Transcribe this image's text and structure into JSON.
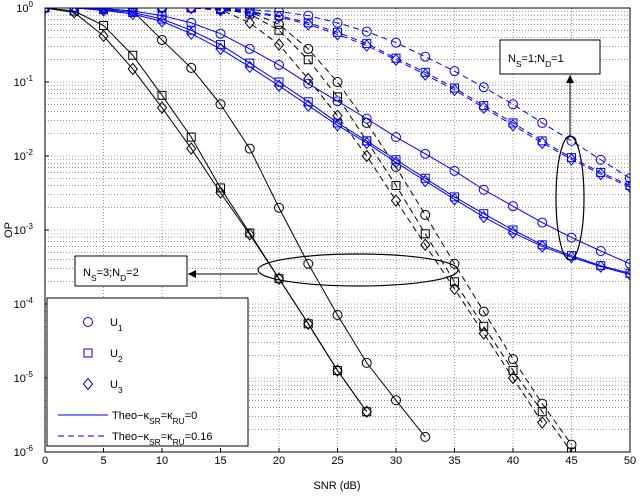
{
  "chart_data": {
    "type": "line",
    "xlabel": "SNR (dB)",
    "ylabel": "OP",
    "log_y": true,
    "grid": true,
    "xlim": [
      0,
      50
    ],
    "ylim": [
      1e-06,
      1
    ],
    "xticks": [
      0,
      5,
      10,
      15,
      20,
      25,
      30,
      35,
      40,
      45,
      50
    ],
    "yticks": [
      {
        "value": 1e-06,
        "label": "10",
        "exp": "-6"
      },
      {
        "value": 1e-05,
        "label": "10",
        "exp": "-5"
      },
      {
        "value": 0.0001,
        "label": "10",
        "exp": "-4"
      },
      {
        "value": 0.001,
        "label": "10",
        "exp": "-3"
      },
      {
        "value": 0.01,
        "label": "10",
        "exp": "-2"
      },
      {
        "value": 0.1,
        "label": "10",
        "exp": "-1"
      },
      {
        "value": 1,
        "label": "10",
        "exp": "0"
      }
    ],
    "x": [
      0,
      2.5,
      5,
      7.5,
      10,
      12.5,
      15,
      17.5,
      20,
      22.5,
      25,
      27.5,
      30,
      32.5,
      35,
      37.5,
      40,
      42.5,
      45,
      47.5,
      50
    ],
    "series": [
      {
        "color": "#000000",
        "dashed": false,
        "marker": "circle",
        "values": [
          1,
          1,
          0.98,
          0.91,
          0.37,
          0.155,
          0.05,
          0.0126,
          0.002,
          0.00035,
          7.1e-05,
          1.6e-05,
          5e-06,
          1.6e-06,
          null,
          null,
          null,
          null,
          null,
          null,
          null
        ]
      },
      {
        "color": "#000000",
        "dashed": false,
        "marker": "square",
        "values": [
          1,
          0.91,
          0.58,
          0.23,
          0.066,
          0.018,
          0.0037,
          0.00091,
          0.00022,
          5.4e-05,
          1.26e-05,
          3.5e-06,
          null,
          null,
          null,
          null,
          null,
          null,
          null,
          null,
          null
        ]
      },
      {
        "color": "#000000",
        "dashed": false,
        "marker": "diamond",
        "values": [
          1,
          0.87,
          0.42,
          0.15,
          0.045,
          0.0126,
          0.0032,
          0.00087,
          0.00022,
          5.4e-05,
          1.26e-05,
          3.5e-06,
          null,
          null,
          null,
          null,
          null,
          null,
          null,
          null,
          null
        ]
      },
      {
        "color": "#000000",
        "dashed": true,
        "marker": "circle",
        "values": [
          1,
          1,
          1,
          1,
          1,
          1,
          0.98,
          0.89,
          0.6,
          0.28,
          0.1,
          0.028,
          0.0071,
          0.0016,
          0.00035,
          7.9e-05,
          1.8e-05,
          4.5e-06,
          1.26e-06,
          null,
          null
        ]
      },
      {
        "color": "#000000",
        "dashed": true,
        "marker": "square",
        "values": [
          1,
          1,
          1,
          1,
          1,
          1,
          0.98,
          0.83,
          0.5,
          0.2,
          0.063,
          0.016,
          0.004,
          0.00089,
          0.0002,
          5e-05,
          1.26e-05,
          3.5e-06,
          1e-06,
          null,
          null
        ]
      },
      {
        "color": "#000000",
        "dashed": true,
        "marker": "diamond",
        "values": [
          1,
          1,
          1,
          1,
          1,
          1,
          0.95,
          0.63,
          0.32,
          0.11,
          0.035,
          0.01,
          0.0025,
          0.00063,
          0.00016,
          4e-05,
          1e-05,
          2.5e-06,
          null,
          null,
          null
        ]
      },
      {
        "color": "#0000ff",
        "dashed": false,
        "marker": "circle",
        "values": [
          1,
          1,
          0.98,
          0.91,
          0.79,
          0.63,
          0.45,
          0.28,
          0.17,
          0.095,
          0.055,
          0.032,
          0.018,
          0.0107,
          0.0063,
          0.0035,
          0.0021,
          0.00126,
          0.00079,
          0.00052,
          0.00035
        ]
      },
      {
        "color": "#0000ff",
        "dashed": false,
        "marker": "square",
        "values": [
          1,
          1,
          0.95,
          0.87,
          0.71,
          0.5,
          0.32,
          0.18,
          0.1,
          0.054,
          0.028,
          0.016,
          0.0089,
          0.005,
          0.0028,
          0.00166,
          0.001,
          0.00063,
          0.00045,
          0.00033,
          0.00026
        ]
      },
      {
        "color": "#0000ff",
        "dashed": false,
        "marker": "diamond",
        "values": [
          1,
          1,
          0.93,
          0.83,
          0.66,
          0.45,
          0.28,
          0.16,
          0.089,
          0.048,
          0.026,
          0.015,
          0.0082,
          0.0046,
          0.0026,
          0.0015,
          0.00092,
          0.0006,
          0.00043,
          0.00032,
          0.00025
        ]
      },
      {
        "color": "#0000ff",
        "dashed": true,
        "marker": "circle",
        "values": [
          1,
          1,
          1,
          1,
          1,
          1,
          0.98,
          0.95,
          0.89,
          0.79,
          0.63,
          0.48,
          0.34,
          0.22,
          0.14,
          0.085,
          0.05,
          0.028,
          0.016,
          0.0089,
          0.005
        ]
      },
      {
        "color": "#0000ff",
        "dashed": true,
        "marker": "square",
        "values": [
          1,
          1,
          1,
          1,
          1,
          1,
          0.95,
          0.89,
          0.79,
          0.63,
          0.47,
          0.33,
          0.21,
          0.135,
          0.083,
          0.048,
          0.028,
          0.016,
          0.0095,
          0.006,
          0.004
        ]
      },
      {
        "color": "#0000ff",
        "dashed": true,
        "marker": "diamond",
        "values": [
          1,
          1,
          1,
          1,
          1,
          1,
          0.93,
          0.87,
          0.76,
          0.6,
          0.44,
          0.31,
          0.2,
          0.126,
          0.078,
          0.045,
          0.026,
          0.015,
          0.009,
          0.0057,
          0.0038
        ]
      }
    ],
    "legend": [
      {
        "marker": "circle",
        "label": [
          {
            "t": "U"
          },
          {
            "sub": "1"
          }
        ]
      },
      {
        "marker": "square",
        "label": [
          {
            "t": "U"
          },
          {
            "sub": "2"
          }
        ]
      },
      {
        "marker": "diamond",
        "label": [
          {
            "t": "U"
          },
          {
            "sub": "3"
          }
        ]
      },
      {
        "line": "solid",
        "label": [
          {
            "t": "Theo−κ"
          },
          {
            "sub": "SR"
          },
          {
            "t": "=κ"
          },
          {
            "sub": "RU"
          },
          {
            "t": "=0"
          }
        ]
      },
      {
        "line": "dashed",
        "label": [
          {
            "t": "Theo−κ"
          },
          {
            "sub": "SR"
          },
          {
            "t": "=κ"
          },
          {
            "sub": "RU"
          },
          {
            "t": "=0.16"
          }
        ]
      }
    ],
    "annotations": [
      {
        "label": [
          {
            "t": "N"
          },
          {
            "sub": "S"
          },
          {
            "t": "=1;N"
          },
          {
            "sub": "D"
          },
          {
            "t": "=1"
          }
        ]
      },
      {
        "label": [
          {
            "t": "N"
          },
          {
            "sub": "S"
          },
          {
            "t": "=3;N"
          },
          {
            "sub": "D"
          },
          {
            "t": "=2"
          }
        ]
      }
    ]
  }
}
